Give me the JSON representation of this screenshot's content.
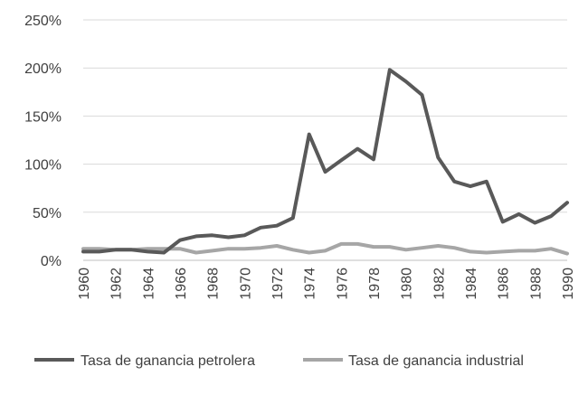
{
  "chart_data": {
    "type": "line",
    "title": "",
    "xlabel": "",
    "ylabel": "",
    "ylim": [
      0,
      250
    ],
    "y_tick_labels": [
      "0%",
      "50%",
      "100%",
      "150%",
      "200%",
      "250%"
    ],
    "x": [
      1960,
      1961,
      1962,
      1963,
      1964,
      1965,
      1966,
      1967,
      1968,
      1969,
      1970,
      1971,
      1972,
      1973,
      1974,
      1975,
      1976,
      1977,
      1978,
      1979,
      1980,
      1981,
      1982,
      1983,
      1984,
      1985,
      1986,
      1987,
      1988,
      1989,
      1990
    ],
    "x_tick_labels": [
      "1960",
      "1962",
      "1964",
      "1966",
      "1968",
      "1970",
      "1972",
      "1974",
      "1976",
      "1978",
      "1980",
      "1982",
      "1984",
      "1986",
      "1988",
      "1990"
    ],
    "grid": "horizontal",
    "legend": "bottom",
    "series": [
      {
        "name": "Tasa de ganancia petrolera",
        "color": "#595959",
        "values": [
          9,
          9,
          11,
          11,
          9,
          8,
          21,
          25,
          26,
          24,
          26,
          34,
          36,
          44,
          131,
          92,
          104,
          116,
          105,
          198,
          186,
          172,
          107,
          82,
          77,
          82,
          40,
          48,
          39,
          46,
          60
        ]
      },
      {
        "name": "Tasa de ganancia industrial",
        "color": "#a6a6a6",
        "values": [
          12,
          12,
          11,
          11,
          12,
          12,
          12,
          8,
          10,
          12,
          12,
          13,
          15,
          11,
          8,
          10,
          17,
          17,
          14,
          14,
          11,
          13,
          15,
          13,
          9,
          8,
          9,
          10,
          10,
          12,
          7
        ]
      }
    ]
  }
}
